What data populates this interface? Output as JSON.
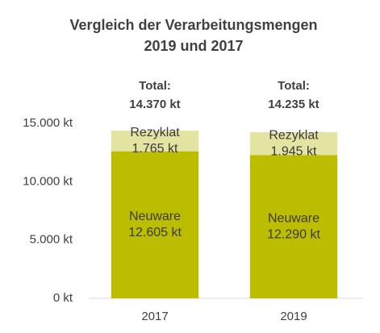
{
  "chart_data": {
    "type": "stacked-bar",
    "title": [
      "Vergleich der Verarbeitungsmengen",
      "2019 und 2017"
    ],
    "categories": [
      "2017",
      "2019"
    ],
    "series": [
      {
        "name": "Neuware",
        "color": "#bdbd00",
        "values": [
          12605,
          12290
        ],
        "value_labels": [
          "12.605 kt",
          "12.290 kt"
        ]
      },
      {
        "name": "Rezyklat",
        "color": "#e3e3a2",
        "values": [
          1765,
          1945
        ],
        "value_labels": [
          "1.765 kt",
          "1.945 kt"
        ]
      }
    ],
    "total_heading": "Total:",
    "totals": [
      14370,
      14235
    ],
    "total_labels": [
      "14.370 kt",
      "14.235 kt"
    ],
    "ylim": [
      0,
      15000
    ],
    "yticks": [
      {
        "value": 0,
        "label": "0 kt"
      },
      {
        "value": 5000,
        "label": "5.000 kt"
      },
      {
        "value": 10000,
        "label": "10.000 kt"
      },
      {
        "value": 15000,
        "label": "15.000 kt"
      }
    ],
    "grid": false
  }
}
